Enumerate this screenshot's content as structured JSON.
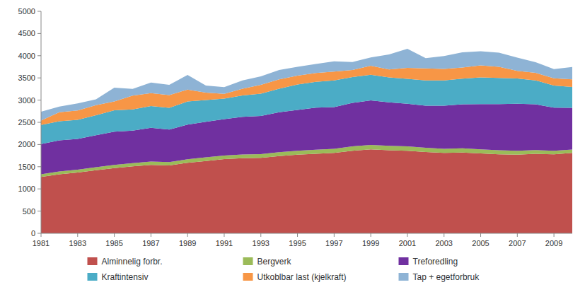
{
  "chart_data": {
    "type": "area",
    "stacked": true,
    "x": [
      1981,
      1982,
      1983,
      1984,
      1985,
      1986,
      1987,
      1988,
      1989,
      1990,
      1991,
      1992,
      1993,
      1994,
      1995,
      1996,
      1997,
      1998,
      1999,
      2000,
      2001,
      2002,
      2003,
      2004,
      2005,
      2006,
      2007,
      2008,
      2009,
      2010
    ],
    "series": [
      {
        "name": "Alminnelig forbr.",
        "color": "#C0504D",
        "values": [
          1270,
          1330,
          1370,
          1420,
          1470,
          1510,
          1540,
          1530,
          1590,
          1630,
          1670,
          1690,
          1700,
          1740,
          1770,
          1790,
          1810,
          1860,
          1890,
          1870,
          1860,
          1830,
          1810,
          1820,
          1800,
          1780,
          1770,
          1790,
          1780,
          1810
        ]
      },
      {
        "name": "Bergverk",
        "color": "#9BBB59",
        "values": [
          60,
          65,
          65,
          68,
          70,
          72,
          75,
          75,
          78,
          80,
          82,
          85,
          85,
          88,
          90,
          92,
          93,
          98,
          102,
          100,
          98,
          95,
          93,
          95,
          92,
          90,
          88,
          85,
          80,
          78
        ]
      },
      {
        "name": "Treforedling",
        "color": "#7030A0",
        "values": [
          680,
          700,
          690,
          720,
          750,
          730,
          760,
          730,
          780,
          800,
          820,
          850,
          860,
          900,
          920,
          950,
          940,
          980,
          1000,
          980,
          960,
          950,
          970,
          990,
          1020,
          1040,
          1060,
          1030,
          970,
          940
        ]
      },
      {
        "name": "Kraftintensiv",
        "color": "#4BACC6",
        "values": [
          430,
          430,
          430,
          450,
          480,
          480,
          490,
          490,
          520,
          490,
          460,
          480,
          500,
          530,
          570,
          580,
          600,
          580,
          580,
          560,
          560,
          570,
          570,
          580,
          600,
          590,
          570,
          540,
          500,
          470
        ]
      },
      {
        "name": "Utkoblbar last (kjelkraft)",
        "color": "#F79646",
        "values": [
          100,
          200,
          210,
          230,
          200,
          310,
          290,
          290,
          270,
          170,
          110,
          150,
          200,
          210,
          200,
          200,
          200,
          160,
          200,
          180,
          250,
          270,
          260,
          250,
          270,
          250,
          170,
          170,
          160,
          170
        ]
      },
      {
        "name": "Tap + egetforbruk",
        "color": "#8EB3D5",
        "values": [
          200,
          130,
          160,
          130,
          310,
          150,
          240,
          230,
          330,
          160,
          150,
          190,
          190,
          210,
          200,
          200,
          230,
          180,
          190,
          340,
          430,
          230,
          290,
          340,
          320,
          320,
          300,
          240,
          210,
          280
        ]
      }
    ],
    "xlim": [
      1981,
      2010
    ],
    "xticks": [
      1981,
      1983,
      1985,
      1987,
      1989,
      1991,
      1993,
      1995,
      1997,
      1999,
      2001,
      2003,
      2005,
      2007,
      2009
    ],
    "ylim": [
      0,
      5000
    ],
    "yticks": [
      0,
      500,
      1000,
      1500,
      2000,
      2500,
      3000,
      3500,
      4000,
      4500,
      5000
    ],
    "grid": false,
    "legend": "bottom"
  }
}
